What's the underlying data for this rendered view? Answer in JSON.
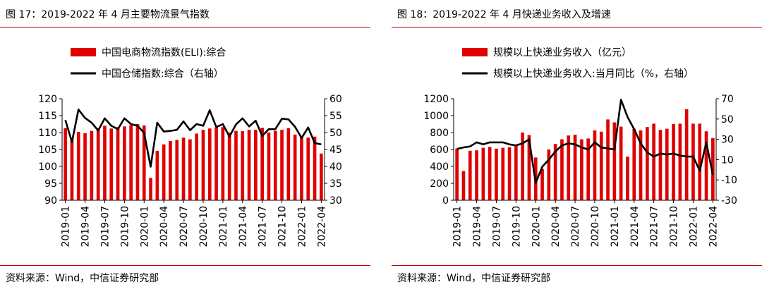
{
  "figures": [
    {
      "title": "图 17：2019-2022 年 4 月主要物流景气指数",
      "source": "资料来源：Wind，中信证券研究部"
    },
    {
      "title": "图 18：2019-2022 年 4 月快递业务收入及增速",
      "source": "资料来源：Wind，中信证券研究部"
    }
  ],
  "colors": {
    "bar": "#e00000",
    "line": "#000000",
    "rule": "#c00000"
  },
  "chart_data": [
    {
      "type": "bar",
      "x_tick_labels": [
        "2019-01",
        "2019-04",
        "2019-07",
        "2019-10",
        "2020-01",
        "2020-04",
        "2020-07",
        "2020-10",
        "2021-01",
        "2021-04",
        "2021-07",
        "2021-10",
        "2022-01",
        "2022-04"
      ],
      "categories": [
        "2019-01",
        "2019-02",
        "2019-03",
        "2019-04",
        "2019-05",
        "2019-06",
        "2019-07",
        "2019-08",
        "2019-09",
        "2019-10",
        "2019-11",
        "2019-12",
        "2020-01",
        "2020-02",
        "2020-03",
        "2020-04",
        "2020-05",
        "2020-06",
        "2020-07",
        "2020-08",
        "2020-09",
        "2020-10",
        "2020-11",
        "2020-12",
        "2021-01",
        "2021-02",
        "2021-03",
        "2021-04",
        "2021-05",
        "2021-06",
        "2021-07",
        "2021-08",
        "2021-09",
        "2021-10",
        "2021-11",
        "2021-12",
        "2022-01",
        "2022-02",
        "2022-03",
        "2022-04"
      ],
      "legend_position": "top",
      "y_left": {
        "ylim": [
          90,
          120
        ],
        "ticks": [
          90,
          95,
          100,
          105,
          110,
          115,
          120
        ]
      },
      "y_right": {
        "ylim": [
          30,
          60
        ],
        "ticks": [
          30,
          35,
          40,
          45,
          50,
          55,
          60
        ]
      },
      "series": [
        {
          "name": "中国电商物流指数(ELI):综合",
          "type": "bar",
          "axis": "left",
          "values": [
            111.3,
            108.5,
            110.2,
            109.8,
            110.5,
            111.3,
            112.0,
            111.2,
            111.6,
            111.8,
            112.2,
            112.5,
            112.1,
            96.6,
            104.6,
            106.5,
            107.5,
            107.8,
            108.5,
            108.0,
            109.7,
            110.8,
            111.2,
            111.5,
            111.6,
            110.0,
            110.5,
            110.4,
            110.8,
            110.8,
            111.4,
            110.0,
            110.5,
            110.8,
            111.3,
            109.4,
            108.8,
            108.5,
            108.8,
            103.8
          ]
        },
        {
          "name": "中国仓储指数:综合（右轴）",
          "type": "line",
          "axis": "right",
          "values": [
            53.7,
            47.2,
            56.8,
            54.3,
            52.9,
            50.6,
            54.2,
            52.0,
            51.0,
            54.2,
            52.5,
            52.0,
            49.9,
            39.9,
            52.9,
            50.3,
            50.5,
            50.8,
            53.3,
            50.7,
            52.5,
            52.0,
            56.6,
            51.6,
            52.5,
            48.8,
            52.4,
            54.2,
            51.8,
            53.5,
            49.0,
            51.0,
            51.0,
            54.1,
            53.9,
            51.7,
            48.4,
            51.5,
            46.9,
            46.5
          ]
        }
      ]
    },
    {
      "type": "bar",
      "x_tick_labels": [
        "2019-01",
        "2019-04",
        "2019-07",
        "2019-10",
        "2020-01",
        "2020-04",
        "2020-07",
        "2020-10",
        "2021-01",
        "2021-04",
        "2021-07",
        "2021-10",
        "2022-01",
        "2022-04"
      ],
      "categories": [
        "2019-01",
        "2019-02",
        "2019-03",
        "2019-04",
        "2019-05",
        "2019-06",
        "2019-07",
        "2019-08",
        "2019-09",
        "2019-10",
        "2019-11",
        "2019-12",
        "2020-01",
        "2020-02",
        "2020-03",
        "2020-04",
        "2020-05",
        "2020-06",
        "2020-07",
        "2020-08",
        "2020-09",
        "2020-10",
        "2020-11",
        "2020-12",
        "2021-01",
        "2021-02",
        "2021-03",
        "2021-04",
        "2021-05",
        "2021-06",
        "2021-07",
        "2021-08",
        "2021-09",
        "2021-10",
        "2021-11",
        "2021-12",
        "2022-01",
        "2022-02",
        "2022-03",
        "2022-04"
      ],
      "legend_position": "top",
      "y_left": {
        "ylim": [
          0,
          1200
        ],
        "ticks": [
          0,
          200,
          400,
          600,
          800,
          1000,
          1200
        ]
      },
      "y_right": {
        "ylim": [
          -30,
          70
        ],
        "ticks": [
          -30,
          -10,
          10,
          30,
          50,
          70
        ]
      },
      "series": [
        {
          "name": "规模以上快递业务收入（亿元）",
          "type": "bar",
          "axis": "left",
          "values": [
            610,
            345,
            585,
            590,
            620,
            630,
            610,
            620,
            625,
            655,
            800,
            770,
            505,
            370,
            600,
            665,
            720,
            765,
            775,
            720,
            730,
            825,
            810,
            955,
            920,
            870,
            515,
            845,
            825,
            865,
            905,
            830,
            845,
            900,
            905,
            1075,
            905,
            905,
            815,
            735
          ]
        },
        {
          "name": "规模以上快递业务收入:当月同比（%，右轴）",
          "type": "line",
          "axis": "right",
          "values": [
            20.5,
            22,
            23,
            27,
            25,
            27,
            27,
            27,
            25,
            24,
            26,
            30,
            -13,
            3,
            10,
            18,
            24,
            26,
            25,
            22,
            20,
            27,
            22,
            21,
            20,
            69,
            52,
            40,
            26,
            17,
            13,
            16,
            15,
            16,
            14,
            13,
            13,
            -1,
            27,
            -5
          ]
        }
      ]
    }
  ]
}
